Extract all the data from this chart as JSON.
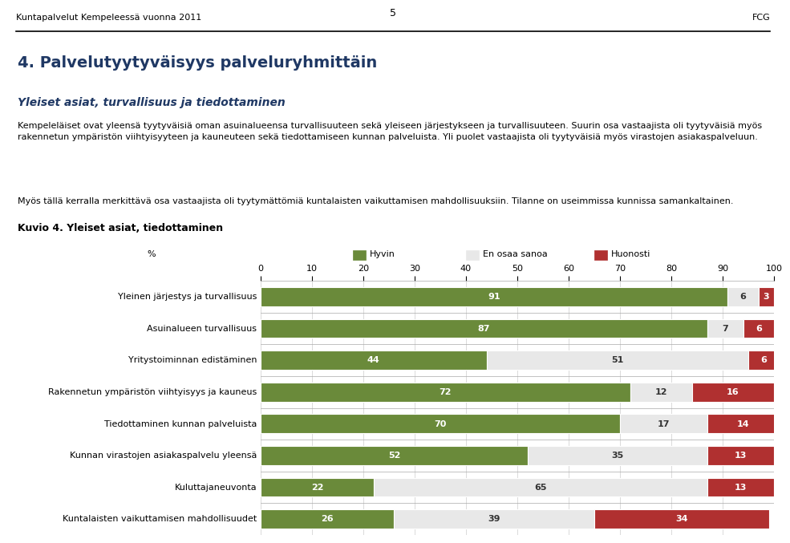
{
  "header_left": "Kuntapalvelut Kempeleessä vuonna 2011",
  "header_center": "5",
  "header_right": "FCG",
  "title": "4. Palvelutyytyväisyys palveluryhmittäin",
  "subtitle": "Yleiset asiat, turvallisuus ja tiedottaminen",
  "body_text1": "Kempeleläiset ovat yleensä tyytyväisiä oman asuinalueensa turvallisuuteen sekä yleiseen järjestykseen ja turvallisuuteen. Suurin osa vastaajista oli tyytyväisiä myös\nrakennetun ympäristön viihtyisyyteen ja kauneuteen sekä tiedottamiseen kunnan palveluista. Yli puolet vastaajista oli tyytyväisiä myös virastojen asiakaspalveluun.",
  "body_text2": "Myös tällä kerralla merkittävä osa vastaajista oli tyytymättömiä kuntalaisten vaikuttamisen mahdollisuuksiin. Tilanne on useimmissa kunnissa samankaltainen.",
  "chart_title": "Kuvio 4. Yleiset asiat, tiedottaminen",
  "categories": [
    "Yleinen järjestys ja turvallisuus",
    "Asuinalueen turvallisuus",
    "Yritystoiminnan edistäminen",
    "Rakennetun ympäristön viihtyisyys ja kauneus",
    "Tiedottaminen kunnan palveluista",
    "Kunnan virastojen asiakaspalvelu yleensä",
    "Kuluttajaneuvonta",
    "Kuntalaisten vaikuttamisen mahdollisuudet"
  ],
  "hyvin": [
    91,
    87,
    44,
    72,
    70,
    52,
    22,
    26
  ],
  "en_osaa_sanoa": [
    6,
    7,
    51,
    12,
    17,
    35,
    65,
    39
  ],
  "huonosti": [
    3,
    6,
    6,
    16,
    14,
    13,
    13,
    34
  ],
  "color_hyvin": "#6a8a3a",
  "color_en_osaa_sanoa": "#e8e8e8",
  "color_huonosti": "#b03030",
  "legend_hyvin": "Hyvin",
  "legend_en_osaa_sanoa": "En osaa sanoa",
  "legend_huonosti": "Huonosti",
  "xticks": [
    0,
    10,
    20,
    30,
    40,
    50,
    60,
    70,
    80,
    90,
    100
  ],
  "title_color": "#1f3864",
  "subtitle_color": "#1f3864",
  "bar_height": 0.6,
  "text_color_on_green": "#ffffff",
  "text_color_on_light": "#333333",
  "text_color_on_red": "#ffffff"
}
